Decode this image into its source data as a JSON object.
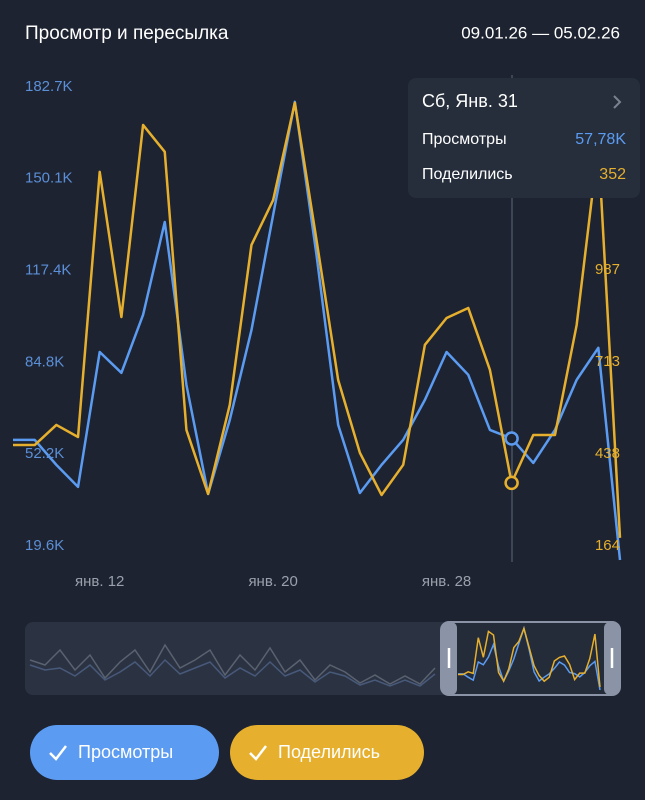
{
  "header": {
    "title": "Просмотр и пересылка",
    "range": "09.01.26 — 05.02.26"
  },
  "chart_data": {
    "type": "line",
    "categories": [
      null,
      null,
      null,
      null,
      "янв. 12",
      null,
      null,
      null,
      null,
      null,
      null,
      null,
      "янв. 20",
      null,
      null,
      null,
      null,
      null,
      null,
      null,
      "янв. 28",
      null,
      null,
      null,
      null,
      null,
      null,
      null,
      null
    ],
    "series": [
      {
        "name": "Просмотры",
        "color": "#5b9cf2",
        "values": [
          57300,
          57300,
          48400,
          40600,
          88500,
          81100,
          101700,
          134700,
          76800,
          38100,
          64400,
          96300,
          137200,
          177400,
          123000,
          62600,
          38400,
          48400,
          57300,
          71500,
          88500,
          80400,
          60800,
          57780,
          49100,
          60800,
          78600,
          90000,
          14600
        ]
      },
      {
        "name": "Поделились",
        "color": "#e6b02e",
        "axis": "y2",
        "values": [
          465,
          465,
          525,
          489,
          1280,
          847,
          1420,
          1340,
          510,
          319,
          585,
          1062,
          1196,
          1486,
          1077,
          659,
          442,
          316,
          406,
          764,
          844,
          874,
          689,
          352,
          495,
          495,
          823,
          1361,
          188
        ]
      }
    ],
    "ylim": [
      14600,
      188700
    ],
    "yticks": [
      {
        "value": 19600,
        "label": "19.6K"
      },
      {
        "value": 52200,
        "label": "52.2K"
      },
      {
        "value": 84800,
        "label": "84.8K"
      },
      {
        "value": 117400,
        "label": "117.4K"
      },
      {
        "value": 150100,
        "label": "150.1K"
      },
      {
        "value": 182700,
        "label": "182.7K"
      }
    ],
    "y2lim": [
      122,
      1584
    ],
    "y2ticks": [
      164,
      438,
      713,
      987
    ],
    "grid": false,
    "tooltip": {
      "title": "Сб, Янв. 31",
      "index": 23,
      "rows": [
        {
          "name": "Просмотры",
          "value": "57,78K"
        },
        {
          "name": "Поделились",
          "value": "352"
        }
      ]
    }
  }
}
